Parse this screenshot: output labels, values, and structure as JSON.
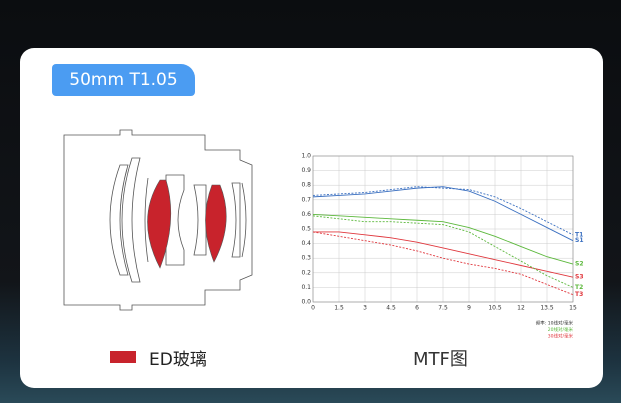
{
  "badge": "50mm T1.05",
  "legend_label": "ED玻璃",
  "caption": "MTF图",
  "chart_data": {
    "type": "line",
    "x": [
      0,
      1.5,
      3,
      4.5,
      6,
      7.5,
      9,
      10.5,
      12,
      13.5,
      15
    ],
    "xlim": [
      0,
      15
    ],
    "xticks": [
      0,
      1.5,
      3,
      4.5,
      6,
      7.5,
      9,
      10.5,
      12,
      13.5,
      15
    ],
    "ylim": [
      0,
      1
    ],
    "yticks": [
      {
        "value": 0,
        "label": "0.0"
      },
      0.1,
      0.2,
      0.3,
      0.4,
      0.5,
      0.6,
      0.7,
      0.8,
      0.9,
      {
        "value": 1,
        "label": "1.0"
      }
    ],
    "grid": true,
    "annotations": [
      "频率: 10线对/毫米",
      "20线对/毫米",
      "30线对/毫米"
    ],
    "series": [
      {
        "name": "T1",
        "color": "#3a6fc0",
        "style": "dashed",
        "values": [
          0.73,
          0.74,
          0.75,
          0.77,
          0.79,
          0.78,
          0.77,
          0.72,
          0.64,
          0.55,
          0.46
        ]
      },
      {
        "name": "S1",
        "color": "#3a6fc0",
        "style": "solid",
        "values": [
          0.72,
          0.73,
          0.74,
          0.76,
          0.78,
          0.79,
          0.76,
          0.69,
          0.6,
          0.51,
          0.42
        ]
      },
      {
        "name": "S2",
        "color": "#5cb83c",
        "style": "solid",
        "values": [
          0.6,
          0.59,
          0.58,
          0.57,
          0.56,
          0.55,
          0.51,
          0.45,
          0.38,
          0.31,
          0.26
        ]
      },
      {
        "name": "S3",
        "color": "#e0383e",
        "style": "solid",
        "values": [
          0.48,
          0.48,
          0.46,
          0.44,
          0.41,
          0.37,
          0.33,
          0.29,
          0.25,
          0.21,
          0.17
        ]
      },
      {
        "name": "T2",
        "color": "#5cb83c",
        "style": "dashed",
        "values": [
          0.59,
          0.57,
          0.55,
          0.55,
          0.54,
          0.53,
          0.48,
          0.38,
          0.28,
          0.18,
          0.1
        ]
      },
      {
        "name": "T3",
        "color": "#e0383e",
        "style": "dashed",
        "values": [
          0.48,
          0.45,
          0.42,
          0.39,
          0.35,
          0.3,
          0.26,
          0.23,
          0.19,
          0.12,
          0.05
        ]
      }
    ]
  }
}
